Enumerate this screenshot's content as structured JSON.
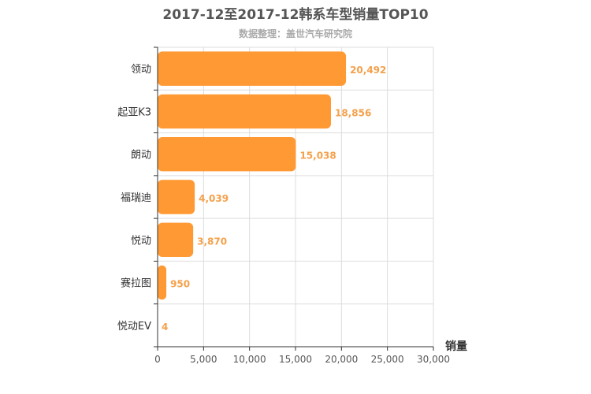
{
  "chart_data": {
    "type": "bar",
    "orientation": "horizontal",
    "title": "2017-12至2017-12韩系车型销量TOP10",
    "subtitle": "数据整理：盖世汽车研究院",
    "xlabel": "销量",
    "categories": [
      "领动",
      "起亚K3",
      "朗动",
      "福瑞迪",
      "悦动",
      "赛拉图",
      "悦动EV"
    ],
    "values": [
      20492,
      18856,
      15038,
      4039,
      3870,
      950,
      4
    ],
    "value_labels": [
      "20,492",
      "18,856",
      "15,038",
      "4,039",
      "3,870",
      "950",
      "4"
    ],
    "xlim": [
      0,
      30000
    ],
    "xticks": [
      0,
      5000,
      10000,
      15000,
      20000,
      25000,
      30000
    ],
    "xtick_labels": [
      "0",
      "5,000",
      "10,000",
      "15,000",
      "20,000",
      "25,000",
      "30,000"
    ],
    "grid": true,
    "bar_color": "#ff9933",
    "value_label_color": "#f5a04a"
  }
}
